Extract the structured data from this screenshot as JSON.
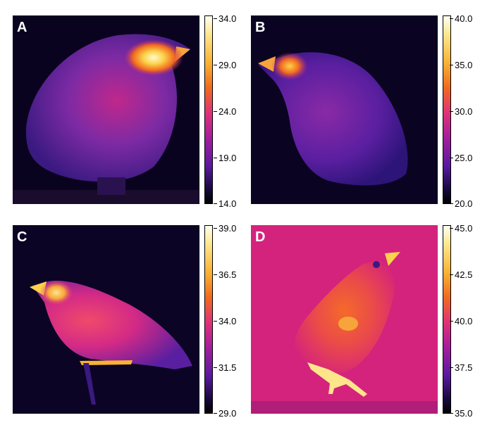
{
  "panels": [
    {
      "label": "A",
      "scale": [
        "34.0",
        "29.0",
        "24.0",
        "19.0",
        "14.0"
      ],
      "background": "#0a0320"
    },
    {
      "label": "B",
      "scale": [
        "40.0",
        "35.0",
        "30.0",
        "25.0",
        "20.0"
      ],
      "background": "#0a0322"
    },
    {
      "label": "C",
      "scale": [
        "39.0",
        "36.5",
        "34.0",
        "31.5",
        "29.0"
      ],
      "background": "#0b0424"
    },
    {
      "label": "D",
      "scale": [
        "45.0",
        "42.5",
        "40.0",
        "37.5",
        "35.0"
      ],
      "background": "#d4237d"
    }
  ],
  "colors": {
    "palette": "ironbow",
    "hot": "#fffbd0",
    "mid": "#e0307a",
    "cold": "#160a3a"
  }
}
